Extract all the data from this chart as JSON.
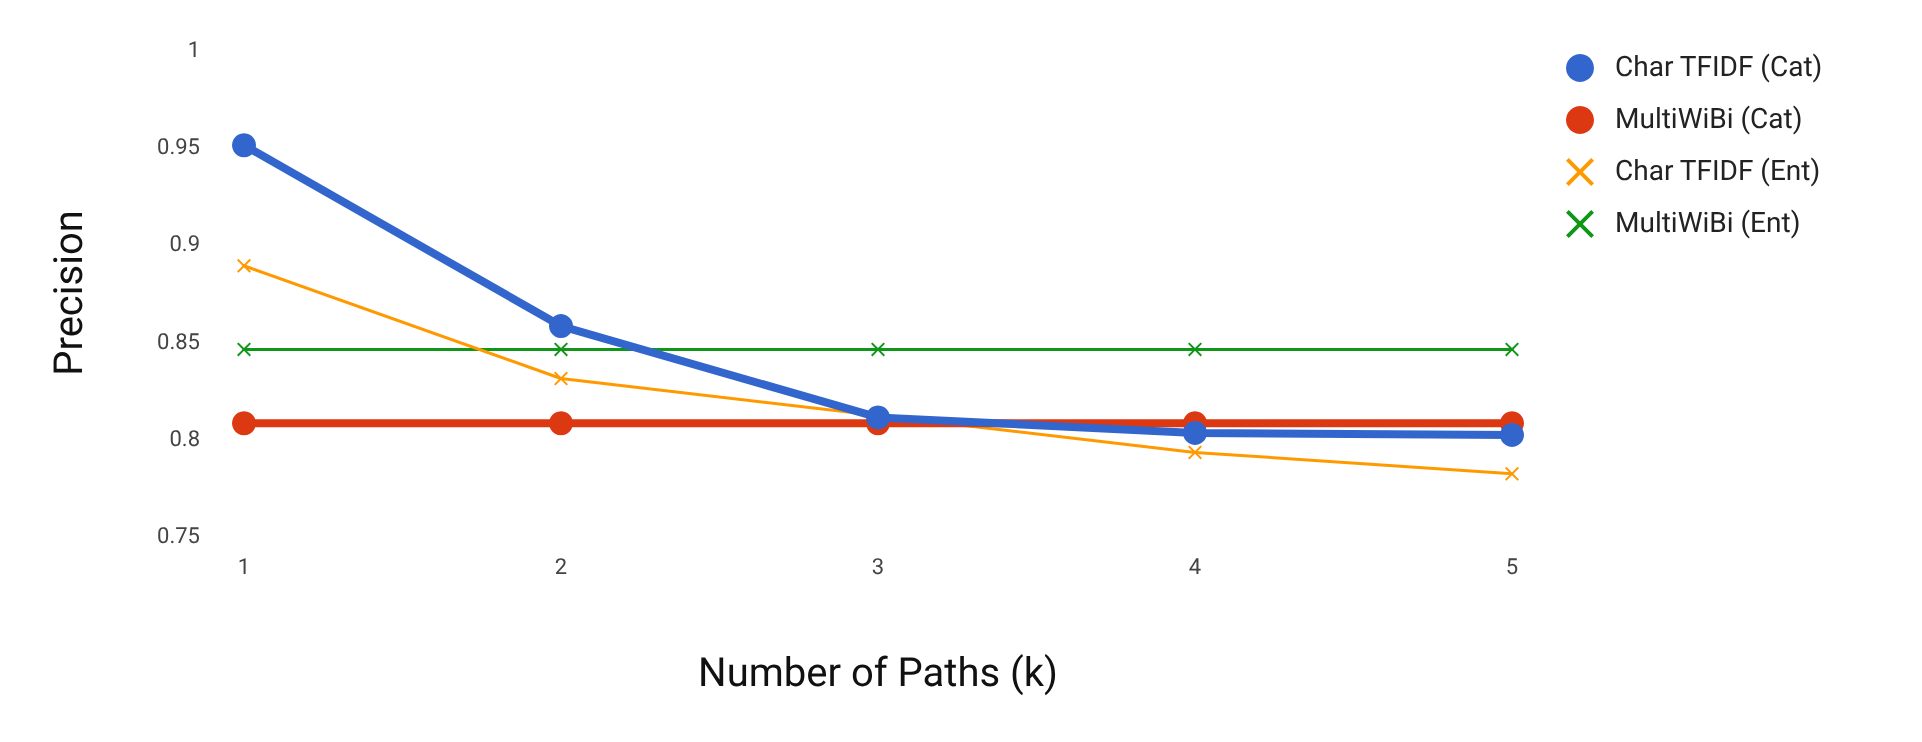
{
  "chart_data": {
    "type": "line",
    "xlabel": "Number of Paths (k)",
    "ylabel": "Precision",
    "x": [
      1,
      2,
      3,
      4,
      5
    ],
    "xlim": [
      1,
      5
    ],
    "xticks": [
      1,
      2,
      3,
      4,
      5
    ],
    "ylim": [
      0.75,
      1
    ],
    "yticks": [
      0.75,
      0.8,
      0.85,
      0.9,
      0.95,
      1
    ],
    "grid": false,
    "legend": "top right",
    "line_style": "solid",
    "series": [
      {
        "name": "Char TFIDF (Cat)",
        "color": "#3366cc",
        "marker": "circle",
        "values": [
          0.951,
          0.858,
          0.811,
          0.803,
          0.802
        ]
      },
      {
        "name": "MultiWiBi (Cat)",
        "color": "#dc3912",
        "marker": "circle",
        "values": [
          0.808,
          0.808,
          0.808,
          0.808,
          0.808
        ]
      },
      {
        "name": "Char TFIDF (Ent)",
        "color": "#ff9900",
        "marker": "cross",
        "values": [
          0.889,
          0.831,
          0.812,
          0.793,
          0.782
        ]
      },
      {
        "name": "MultiWiBi (Ent)",
        "color": "#109618",
        "marker": "cross",
        "values": [
          0.846,
          0.846,
          0.846,
          0.846,
          0.846
        ]
      }
    ]
  }
}
